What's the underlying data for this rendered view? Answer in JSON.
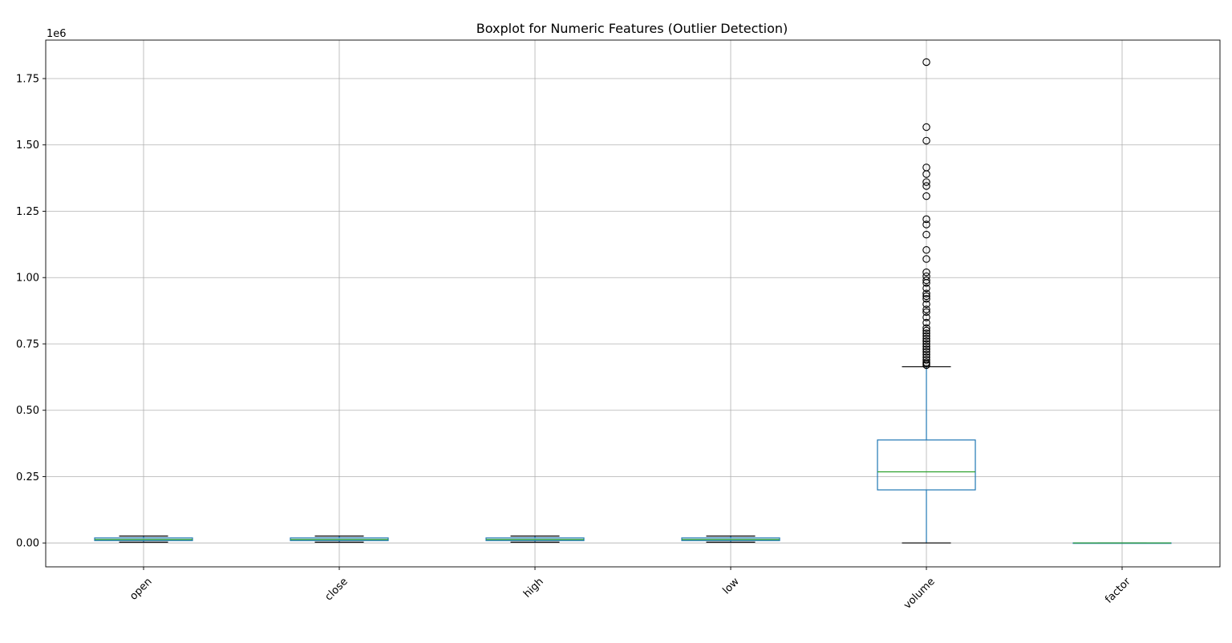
{
  "chart_data": {
    "type": "boxplot",
    "title": "Boxplot for Numeric Features (Outlier Detection)",
    "xlabel": "",
    "ylabel": "",
    "y_offset_label": "1e6",
    "ylim": [
      -0.09,
      1.895
    ],
    "y_ticks": [
      0.0,
      0.25,
      0.5,
      0.75,
      1.0,
      1.25,
      1.5,
      1.75
    ],
    "y_tick_labels": [
      "0.00",
      "0.25",
      "0.50",
      "0.75",
      "1.00",
      "1.25",
      "1.50",
      "1.75"
    ],
    "grid": true,
    "x_tick_rotation": 45,
    "categories": [
      "open",
      "close",
      "high",
      "low",
      "volume",
      "factor"
    ],
    "colors": {
      "box": "#1f77b4",
      "median": "#2ca02c",
      "cap": "#000000",
      "outlier": "#000000"
    },
    "boxes": [
      {
        "name": "open",
        "whislo": 0.003,
        "q1": 0.009,
        "med": 0.013,
        "q3": 0.019,
        "whishi": 0.026,
        "fliers": []
      },
      {
        "name": "close",
        "whislo": 0.003,
        "q1": 0.009,
        "med": 0.013,
        "q3": 0.019,
        "whishi": 0.026,
        "fliers": []
      },
      {
        "name": "high",
        "whislo": 0.003,
        "q1": 0.009,
        "med": 0.013,
        "q3": 0.019,
        "whishi": 0.026,
        "fliers": []
      },
      {
        "name": "low",
        "whislo": 0.003,
        "q1": 0.009,
        "med": 0.013,
        "q3": 0.019,
        "whishi": 0.026,
        "fliers": []
      },
      {
        "name": "volume",
        "whislo": 0.0,
        "q1": 0.2,
        "med": 0.268,
        "q3": 0.388,
        "whishi": 0.664,
        "fliers": [
          1.812,
          1.567,
          1.516,
          1.415,
          1.39,
          1.36,
          1.345,
          1.307,
          1.22,
          1.2,
          1.162,
          1.104,
          1.07,
          1.02,
          1.005,
          0.99,
          0.98,
          0.96,
          0.94,
          0.93,
          0.92,
          0.9,
          0.88,
          0.87,
          0.85,
          0.83,
          0.81,
          0.8,
          0.79,
          0.78,
          0.77,
          0.76,
          0.75,
          0.74,
          0.73,
          0.72,
          0.71,
          0.7,
          0.69,
          0.68,
          0.675,
          0.67
        ]
      },
      {
        "name": "factor",
        "whislo": 0.0,
        "q1": 0.0,
        "med": 0.0,
        "q3": 0.0,
        "whishi": 0.0,
        "fliers": []
      }
    ]
  }
}
